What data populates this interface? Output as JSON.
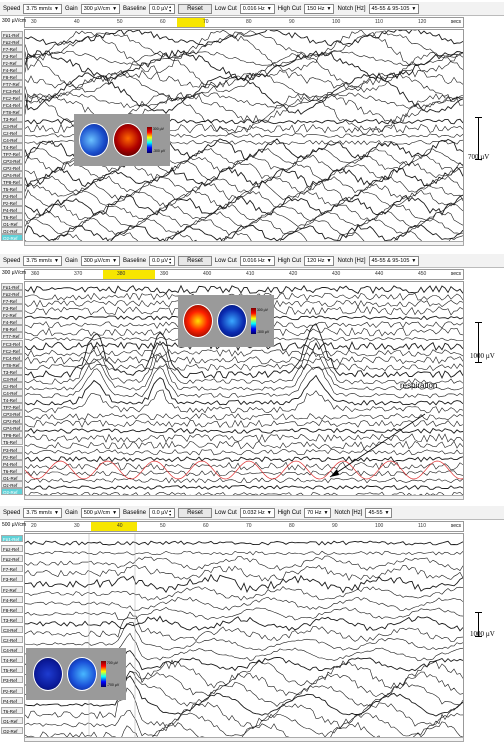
{
  "panels": [
    {
      "toolbar": {
        "speed_label": "Speed",
        "speed_value": "3.75 mm/s",
        "gain_label": "Gain",
        "gain_value": "300 µV/cm",
        "baseline_label": "Baseline",
        "baseline_value": "0.0 µV",
        "reset_label": "Reset",
        "lowcut_label": "Low Cut",
        "lowcut_value": "0.016 Hz",
        "highcut_label": "High Cut",
        "highcut_value": "150 Hz",
        "notch_label": "Notch [Hz]",
        "notch_value": "45-55 & 95-105"
      },
      "gain_readout": "300 µV/cm",
      "ticks": [
        "30",
        "40",
        "50",
        "60",
        "70",
        "80",
        "90",
        "100",
        "110",
        "120"
      ],
      "secs_label": "secs",
      "channels": [
        "Fp1-Ref",
        "Fp2-Ref",
        "F7-Ref",
        "F3-Ref",
        "Fz-Ref",
        "F4-Ref",
        "F8-Ref",
        "FT7-Ref",
        "FC3-Ref",
        "FCz-Ref",
        "FC4-Ref",
        "FT8-Ref",
        "T3-Ref",
        "C3-Ref",
        "Cz-Ref",
        "C4-Ref",
        "T4-Ref",
        "TP7-Ref",
        "CP3-Ref",
        "CPz-Ref",
        "CP4-Ref",
        "TP8-Ref",
        "T5-Ref",
        "P3-Ref",
        "Pz-Ref",
        "P4-Ref",
        "T6-Ref",
        "O1-Ref",
        "Oz-Ref",
        "O2-Ref"
      ],
      "highlighted_channel": "O2-Ref",
      "scale_label": "700 µV",
      "colorbar_top": "300 µV",
      "colorbar_bottom": "-300 µV"
    },
    {
      "toolbar": {
        "speed_label": "Speed",
        "speed_value": "3.75 mm/s",
        "gain_label": "Gain",
        "gain_value": "300 µV/cm",
        "baseline_label": "Baseline",
        "baseline_value": "0.0 µV",
        "reset_label": "Reset",
        "lowcut_label": "Low Cut",
        "lowcut_value": "0.016 Hz",
        "highcut_label": "High Cut",
        "highcut_value": "120 Hz",
        "notch_label": "Notch [Hz]",
        "notch_value": "45-55 & 95-105"
      },
      "gain_readout": "300 µV/cm",
      "ticks": [
        "360",
        "370",
        "380",
        "390",
        "400",
        "410",
        "420",
        "430",
        "440",
        "450"
      ],
      "secs_label": "secs",
      "channels": [
        "Fp1-Ref",
        "Fp2-Ref",
        "F7-Ref",
        "F3-Ref",
        "Fz-Ref",
        "F4-Ref",
        "F8-Ref",
        "FT7-Ref",
        "FC3-Ref",
        "FCz-Ref",
        "FC4-Ref",
        "FT8-Ref",
        "T3-Ref",
        "C3-Ref",
        "Cz-Ref",
        "C4-Ref",
        "T4-Ref",
        "TP7-Ref",
        "CP3-Ref",
        "CPz-Ref",
        "CP4-Ref",
        "TP8-Ref",
        "T5-Ref",
        "P3-Ref",
        "Pz-Ref",
        "P4-Ref",
        "T6-Ref",
        "O1-Ref",
        "Oz-Ref",
        "O2-Ref"
      ],
      "highlighted_channel": "O2-Ref",
      "scale_label": "1000 µV",
      "colorbar_top": "300 µV",
      "colorbar_bottom": "-300 µV",
      "annotation": "respiration"
    },
    {
      "toolbar": {
        "speed_label": "Speed",
        "speed_value": "3.75 mm/s",
        "gain_label": "Gain",
        "gain_value": "500 µV/cm",
        "baseline_label": "Baseline",
        "baseline_value": "0.0 µV",
        "reset_label": "Reset",
        "lowcut_label": "Low Cut",
        "lowcut_value": "0.032 Hz",
        "highcut_label": "High Cut",
        "highcut_value": "70 Hz",
        "notch_label": "Notch [Hz]",
        "notch_value": "45-55"
      },
      "gain_readout": "500 µV/cm",
      "ticks": [
        "20",
        "30",
        "40",
        "50",
        "60",
        "70",
        "80",
        "90",
        "100",
        "110"
      ],
      "secs_label": "secs",
      "channels": [
        "Fp1-Ref",
        "Fpz-Ref",
        "Fp2-Ref",
        "F7-Ref",
        "F3-Ref",
        "Fz-Ref",
        "F4-Ref",
        "F8-Ref",
        "T3-Ref",
        "C3-Ref",
        "Cz-Ref",
        "C4-Ref",
        "T4-Ref",
        "T5-Ref",
        "P3-Ref",
        "Pz-Ref",
        "P4-Ref",
        "T6-Ref",
        "O1-Ref",
        "O2-Ref"
      ],
      "highlighted_channel": "Fp1-Ref",
      "scale_label": "1000 µV",
      "colorbar_top": "700 µV",
      "colorbar_bottom": "-700 µV"
    }
  ],
  "colors": {
    "marker": "#f7e600",
    "highlight": "#5fd2d8",
    "trace": "#1a1a1a",
    "resp": "#e03030"
  }
}
